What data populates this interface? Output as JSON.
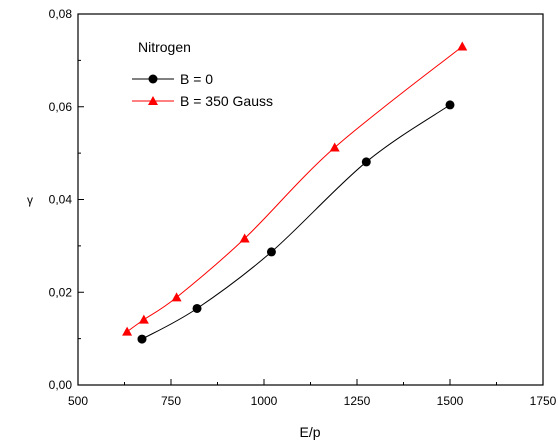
{
  "chart_data": {
    "type": "line",
    "title": "",
    "annotation": "Nitrogen",
    "xlabel": "E/p",
    "ylabel": "γ",
    "xlim": [
      500,
      1750
    ],
    "ylim": [
      0,
      0.08
    ],
    "x_ticks": [
      500,
      750,
      1000,
      1250,
      1500,
      1750
    ],
    "x_tick_labels": [
      "500",
      "750",
      "1000",
      "1250",
      "1500",
      "1750"
    ],
    "y_ticks": [
      0.0,
      0.02,
      0.04,
      0.06,
      0.08
    ],
    "y_tick_labels": [
      "0,00",
      "0,02",
      "0,04",
      "0,06",
      "0,08"
    ],
    "grid": false,
    "legend_position": "top-left",
    "series": [
      {
        "name": "B = 0",
        "color": "#000000",
        "marker": "circle",
        "x": [
          672,
          820,
          1020,
          1275,
          1500
        ],
        "y": [
          0.0099,
          0.0165,
          0.0287,
          0.0481,
          0.0604
        ]
      },
      {
        "name": "B = 350 Gauss",
        "color": "#ff0000",
        "marker": "triangle",
        "x": [
          632,
          677,
          765,
          948,
          1190,
          1533
        ],
        "y": [
          0.0115,
          0.0141,
          0.0189,
          0.0316,
          0.0512,
          0.073
        ]
      }
    ]
  }
}
